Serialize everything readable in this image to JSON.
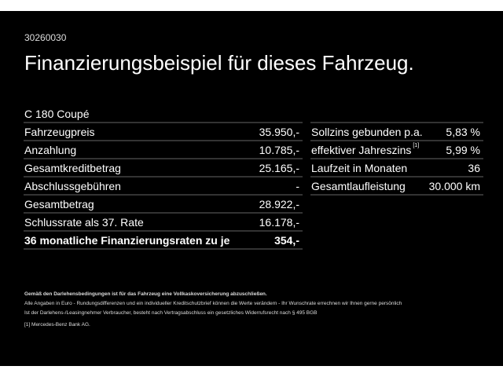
{
  "code": "30260030",
  "title": "Finanzierungsbeispiel für dieses Fahrzeug.",
  "model": "C 180 Coupé",
  "left_table": [
    {
      "label": "Fahrzeugpreis",
      "value": "35.950,-"
    },
    {
      "label": "Anzahlung",
      "value": "10.785,-"
    },
    {
      "label": "Gesamtkreditbetrag",
      "value": "25.165,-"
    },
    {
      "label": "Abschlussgebühren",
      "value": "-"
    },
    {
      "label": "Gesamtbetrag",
      "value": "28.922,-"
    },
    {
      "label": "Schlussrate als 37. Rate",
      "value": "16.178,-"
    },
    {
      "label": "36 monatliche Finanzierungsraten zu je",
      "value": "354,-"
    }
  ],
  "right_table": [
    {
      "label": "Sollzins gebunden p.a.",
      "value": "5,83 %"
    },
    {
      "label": "effektiver Jahreszins",
      "sup": "[1]",
      "value": "5,99 %"
    },
    {
      "label": "Laufzeit in Monaten",
      "value": "36"
    },
    {
      "label": "Gesamtlaufleistung",
      "value": "30.000 km"
    }
  ],
  "notes": {
    "insurance": "Gemäß den Darlehensbedingungen ist für das Fahrzeug eine Vollkaskoversicherung abzuschließen.",
    "line1": "Alle Angaben in Euro - Rundungsdifferenzen und ein individueller Kreditschutzbrief können die Werte verändern - Ihr Wunschrate errechnen wir Ihnen gerne persönlich",
    "line2": "Ist der Darlehens-/Leasingnehmer Verbraucher, besteht nach Vertragsabschluss ein gesetzliches Widerrufsrecht nach § 495 BGB",
    "footnote": "[1]  Mercedes-Benz Bank AG."
  }
}
